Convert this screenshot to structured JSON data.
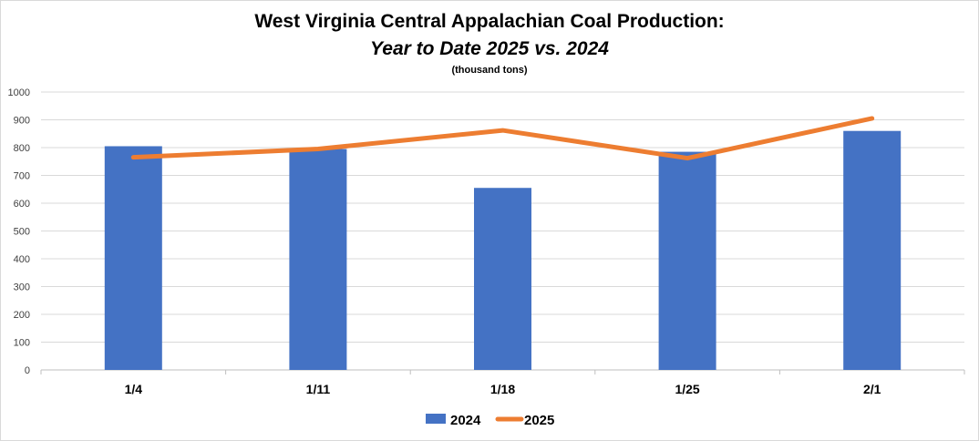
{
  "chart_data": {
    "type": "bar+line",
    "title": "West Virginia Central Appalachian Coal Production:",
    "subtitle": "Year to Date 2025 vs. 2024",
    "units": "(thousand tons)",
    "categories": [
      "1/4",
      "1/11",
      "1/18",
      "1/25",
      "2/1"
    ],
    "series": [
      {
        "name": "2024",
        "type": "bar",
        "color": "#4472c4",
        "values": [
          805,
          795,
          655,
          785,
          860
        ]
      },
      {
        "name": "2025",
        "type": "line",
        "color": "#ed7d31",
        "values": [
          765,
          795,
          862,
          762,
          905
        ]
      }
    ],
    "ylim": [
      0,
      1000
    ],
    "yticks": [
      0,
      100,
      200,
      300,
      400,
      500,
      600,
      700,
      800,
      900,
      1000
    ],
    "grid": true,
    "legend_position": "bottom"
  }
}
